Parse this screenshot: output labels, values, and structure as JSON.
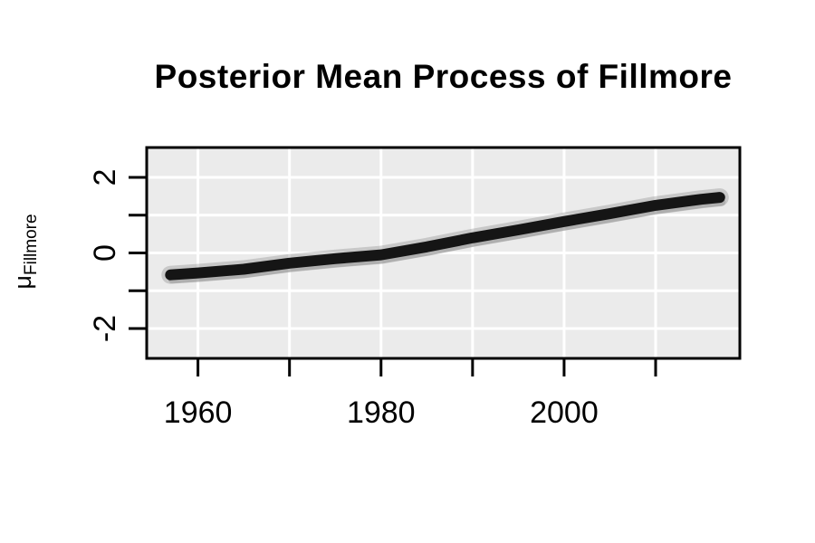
{
  "chart_data": {
    "type": "line",
    "title": "Posterior Mean Process of Fillmore",
    "ylabel_main": "μ",
    "ylabel_sub": "Fillmore",
    "xlabel": "",
    "x_range": [
      1954.4,
      2019.2
    ],
    "y_range": [
      -2.79,
      2.79
    ],
    "x_ticks": [
      1960,
      1970,
      1980,
      1990,
      2000,
      2010
    ],
    "x_labeled_ticks": [
      {
        "value": 1960,
        "label": "1960"
      },
      {
        "value": 1980,
        "label": "1980"
      },
      {
        "value": 2000,
        "label": "2000"
      }
    ],
    "y_ticks": [
      -2,
      -1,
      0,
      1,
      2
    ],
    "y_labeled_ticks": [
      {
        "value": 2,
        "label": "2"
      },
      {
        "value": 0,
        "label": "0"
      },
      {
        "value": -2,
        "label": "-2"
      }
    ],
    "grid": "major-white-on-gray",
    "legend": "none",
    "series": [
      {
        "name": "posterior-mean",
        "x": [
          1957,
          1960,
          1965,
          1970,
          1975,
          1980,
          1985,
          1990,
          1995,
          2000,
          2005,
          2010,
          2015,
          2017
        ],
        "y": [
          -0.58,
          -0.53,
          -0.43,
          -0.27,
          -0.15,
          -0.05,
          0.16,
          0.4,
          0.61,
          0.83,
          1.04,
          1.26,
          1.42,
          1.47
        ]
      }
    ],
    "colors": {
      "mean_line": "#151515",
      "posterior_draws": "#909090",
      "panel_bg": "#ebebeb",
      "gridline": "#ffffff",
      "axis": "#000000",
      "page_bg": "#ffffff"
    }
  }
}
